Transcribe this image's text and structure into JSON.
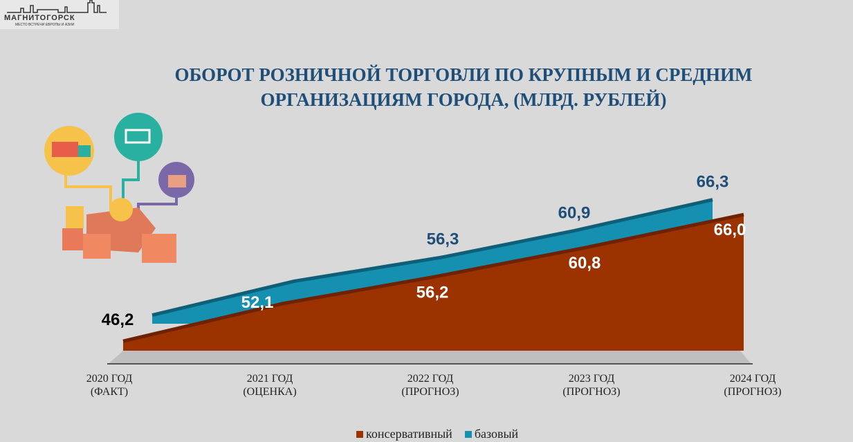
{
  "logo": {
    "name": "МАГНИТОГОРСК",
    "tagline": "МЕСТО ВСТРЕЧИ ЕВРОПЫ И АЗИИ"
  },
  "title_line1": "ОБОРОТ РОЗНИЧНОЙ ТОРГОВЛИ ПО КРУПНЫМ И СРЕДНИМ",
  "title_line2": "ОРГАНИЗАЦИЯМ ГОРОДА, (МЛРД. РУБЛЕЙ)",
  "chart_data": {
    "type": "area",
    "title": "ОБОРОТ РОЗНИЧНОЙ ТОРГОВЛИ ПО КРУПНЫМ И СРЕДНИМ ОРГАНИЗАЦИЯМ ГОРОДА, (МЛРД. РУБЛЕЙ)",
    "categories": [
      [
        "2020 ГОД",
        "(ФАКТ)"
      ],
      [
        "2021 ГОД",
        "(ОЦЕНКА)"
      ],
      [
        "2022 ГОД",
        "(ПРОГНОЗ)"
      ],
      [
        "2023 ГОД",
        "(ПРОГНОЗ)"
      ],
      [
        "2024 ГОД",
        "(ПРОГНОЗ)"
      ]
    ],
    "series": [
      {
        "name": "консервативный",
        "color": "#9c3200",
        "values": [
          46.2,
          52.1,
          56.2,
          60.8,
          66.0
        ],
        "labels": [
          "46,2",
          "52,1",
          "56,2",
          "60,8",
          "66,0"
        ]
      },
      {
        "name": "базовый",
        "color": "#1590b0",
        "values": [
          46.2,
          52.1,
          56.3,
          60.9,
          66.3
        ],
        "labels": [
          "",
          "",
          "56,3",
          "60,9",
          "66,3"
        ]
      }
    ],
    "legend": "bottom",
    "grid": false
  }
}
